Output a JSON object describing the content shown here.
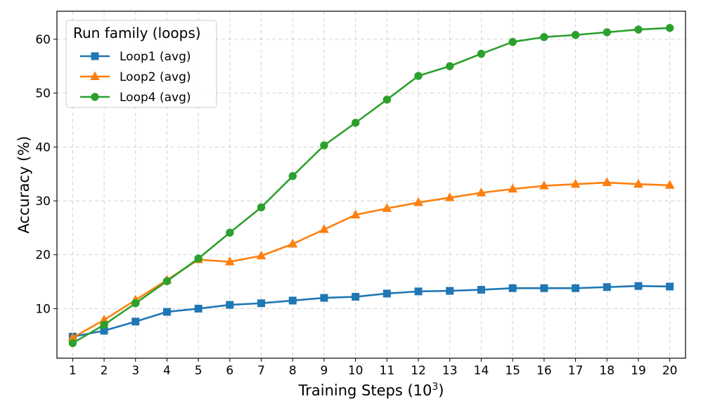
{
  "chart_data": {
    "type": "line",
    "xlabel": "Training Steps (10",
    "xlabel_sup": "3",
    "xlabel_close": ")",
    "ylabel": "Accuracy (%)",
    "x": [
      1,
      2,
      3,
      4,
      5,
      6,
      7,
      8,
      9,
      10,
      11,
      12,
      13,
      14,
      15,
      16,
      17,
      18,
      19,
      20
    ],
    "xticks": [
      "1",
      "2",
      "3",
      "4",
      "5",
      "6",
      "7",
      "8",
      "9",
      "10",
      "11",
      "12",
      "13",
      "14",
      "15",
      "16",
      "17",
      "18",
      "19",
      "20"
    ],
    "xlim": [
      0.5,
      20.5
    ],
    "ylim": [
      0.8,
      65.2
    ],
    "yticks": [
      10,
      20,
      30,
      40,
      50,
      60
    ],
    "ytick_labels": [
      "10",
      "20",
      "30",
      "40",
      "50",
      "60"
    ],
    "grid": true,
    "legend": {
      "title": "Run family (loops)",
      "position": "upper-left"
    },
    "series": [
      {
        "name": "Loop1 (avg)",
        "color": "#1f77b4",
        "marker": "square",
        "values": [
          4.8,
          5.9,
          7.6,
          9.4,
          10.0,
          10.7,
          11.0,
          11.5,
          12.0,
          12.2,
          12.8,
          13.2,
          13.3,
          13.5,
          13.8,
          13.8,
          13.8,
          14.0,
          14.2,
          14.1
        ]
      },
      {
        "name": "Loop2 (avg)",
        "color": "#ff7f0e",
        "marker": "triangle",
        "values": [
          4.6,
          7.9,
          11.6,
          15.3,
          19.1,
          18.7,
          19.8,
          22.0,
          24.7,
          27.4,
          28.6,
          29.7,
          30.6,
          31.5,
          32.2,
          32.8,
          33.1,
          33.4,
          33.1,
          32.9
        ]
      },
      {
        "name": "Loop4 (avg)",
        "color": "#2ca02c",
        "marker": "circle",
        "values": [
          3.6,
          7.0,
          11.0,
          15.1,
          19.3,
          24.1,
          28.8,
          34.6,
          40.3,
          44.5,
          48.8,
          53.2,
          55.0,
          57.3,
          59.5,
          60.4,
          60.8,
          61.3,
          61.8,
          62.1
        ]
      }
    ]
  }
}
